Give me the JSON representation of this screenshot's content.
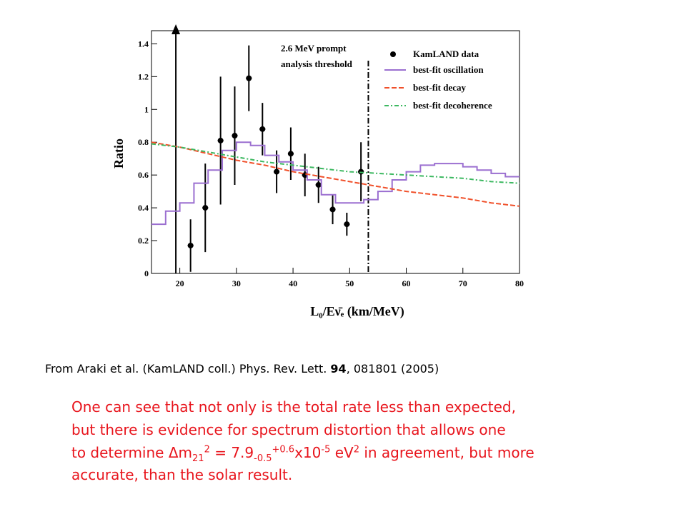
{
  "chart_data": {
    "type": "line",
    "ylabel": "Ratio",
    "xlabel": "L₀/Eν̄ₑ (km/MeV)",
    "xlim": [
      15,
      80
    ],
    "ylim": [
      0,
      1.48
    ],
    "xticks": [
      20,
      30,
      40,
      50,
      60,
      70,
      80
    ],
    "yticks": [
      0,
      0.2,
      0.4,
      0.6,
      0.8,
      1,
      1.2,
      1.4
    ],
    "annotation": [
      "2.6 MeV prompt",
      "analysis threshold"
    ],
    "threshold_x": 53.3,
    "arrow_x": 19.3,
    "series": [
      {
        "name": "KamLAND data",
        "color": "#000000",
        "style": "points",
        "x": [
          21.9,
          24.5,
          27.2,
          29.7,
          32.2,
          34.6,
          37.1,
          39.6,
          42.1,
          44.5,
          47.0,
          49.5,
          52.0
        ],
        "values": [
          0.17,
          0.4,
          0.81,
          0.84,
          1.19,
          0.88,
          0.62,
          0.73,
          0.6,
          0.54,
          0.39,
          0.3,
          0.62
        ],
        "errors": [
          0.16,
          0.27,
          0.39,
          0.3,
          0.2,
          0.16,
          0.13,
          0.16,
          0.13,
          0.11,
          0.09,
          0.07,
          0.18
        ]
      },
      {
        "name": "best-fit oscillation",
        "color": "#9b6fd0",
        "style": "step",
        "x": [
          15,
          17.5,
          20,
          22.5,
          25,
          27.5,
          30,
          32.5,
          35,
          37.5,
          40,
          42.5,
          45,
          47.5,
          50,
          52.5,
          55,
          57.5,
          60,
          62.5,
          65,
          67.5,
          70,
          72.5,
          75,
          77.5
        ],
        "values": [
          0.3,
          0.38,
          0.43,
          0.55,
          0.63,
          0.75,
          0.8,
          0.78,
          0.72,
          0.68,
          0.63,
          0.57,
          0.48,
          0.43,
          0.43,
          0.45,
          0.5,
          0.57,
          0.62,
          0.66,
          0.67,
          0.67,
          0.65,
          0.63,
          0.61,
          0.59
        ]
      },
      {
        "name": "best-fit decay",
        "color": "#f0502a",
        "style": "dash",
        "x": [
          15,
          20,
          25,
          30,
          35,
          40,
          45,
          50,
          55,
          60,
          65,
          70,
          75,
          80
        ],
        "values": [
          0.8,
          0.77,
          0.73,
          0.69,
          0.66,
          0.62,
          0.59,
          0.56,
          0.53,
          0.5,
          0.48,
          0.46,
          0.43,
          0.41
        ]
      },
      {
        "name": "best-fit decoherence",
        "color": "#3cb860",
        "style": "dashdot",
        "x": [
          15,
          20,
          25,
          30,
          35,
          40,
          45,
          50,
          55,
          60,
          65,
          70,
          75,
          80
        ],
        "values": [
          0.79,
          0.77,
          0.74,
          0.71,
          0.68,
          0.66,
          0.64,
          0.62,
          0.61,
          0.6,
          0.59,
          0.58,
          0.56,
          0.55
        ]
      }
    ]
  },
  "caption": [
    "From Araki et al. (KamLAND coll.) Phys. Rev. Lett. ",
    "94",
    ", 081801 (2005)"
  ],
  "body": {
    "line1": "One can see that not only is the total rate less than expected,",
    "line2": "but there is evidence for spectrum distortion that allows one",
    "line3": [
      "to determine ",
      "Δm",
      "21",
      "2",
      " = 7.9",
      "-0.5",
      "+0.6",
      "x10",
      "-5",
      " eV",
      "2",
      " in agreement, but more"
    ],
    "line4": "accurate, than the solar result."
  }
}
